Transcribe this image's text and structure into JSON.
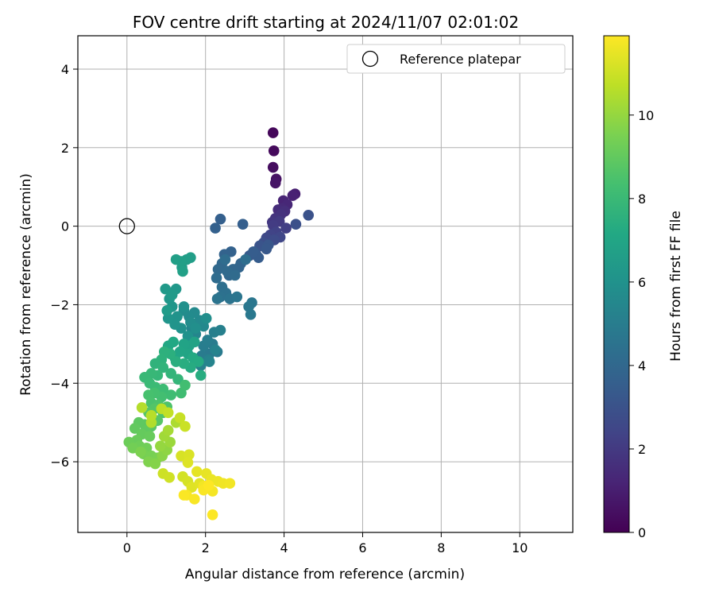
{
  "chart_data": {
    "type": "scatter",
    "title": "FOV centre drift starting at 2024/11/07 02:01:02",
    "xlabel": "Angular distance from reference (arcmin)",
    "ylabel": "Rotation from reference (arcmin)",
    "xlim": [
      -1.25,
      11.35
    ],
    "ylim": [
      -7.8,
      4.85
    ],
    "xticks": [
      0,
      2,
      4,
      6,
      8,
      10
    ],
    "yticks": [
      -6,
      -4,
      -2,
      0,
      2,
      4
    ],
    "grid": true,
    "legend": {
      "placement": "top-right",
      "entries": [
        "Reference platepar"
      ]
    },
    "reference_point": {
      "name": "Reference platepar",
      "x": 0,
      "y": 0
    },
    "colorbar": {
      "label": "Hours from first FF file",
      "min": 0,
      "max": 11.9,
      "ticks": [
        0,
        2,
        4,
        6,
        8,
        10
      ],
      "colormap": "viridis"
    },
    "points_hours_x_y": [
      [
        0.2,
        3.72,
        2.38
      ],
      [
        0.3,
        3.74,
        1.92
      ],
      [
        0.4,
        3.72,
        1.5
      ],
      [
        0.55,
        3.8,
        1.2
      ],
      [
        0.65,
        3.78,
        1.1
      ],
      [
        1.0,
        4.28,
        0.82
      ],
      [
        1.1,
        4.22,
        0.78
      ],
      [
        1.2,
        3.98,
        0.65
      ],
      [
        1.3,
        4.08,
        0.55
      ],
      [
        1.4,
        3.95,
        0.45
      ],
      [
        1.5,
        3.85,
        0.42
      ],
      [
        1.6,
        4.02,
        0.38
      ],
      [
        1.7,
        3.92,
        0.3
      ],
      [
        1.8,
        3.78,
        0.2
      ],
      [
        1.9,
        3.7,
        0.1
      ],
      [
        2.0,
        3.88,
        0.12
      ],
      [
        2.1,
        3.72,
        0.02
      ],
      [
        2.2,
        4.05,
        -0.05
      ],
      [
        2.3,
        3.8,
        -0.15
      ],
      [
        2.4,
        3.65,
        -0.22
      ],
      [
        2.5,
        3.9,
        -0.28
      ],
      [
        2.6,
        3.55,
        -0.3
      ],
      [
        2.7,
        3.75,
        -0.35
      ],
      [
        2.8,
        3.48,
        -0.42
      ],
      [
        2.9,
        4.3,
        0.05
      ],
      [
        3.0,
        4.62,
        0.28
      ],
      [
        3.1,
        3.38,
        -0.5
      ],
      [
        3.2,
        3.6,
        -0.48
      ],
      [
        3.25,
        3.55,
        -0.58
      ],
      [
        3.3,
        3.28,
        -0.7
      ],
      [
        3.4,
        3.12,
        -0.75
      ],
      [
        3.45,
        3.35,
        -0.8
      ],
      [
        3.5,
        3.22,
        -0.65
      ],
      [
        3.55,
        2.95,
        0.05
      ],
      [
        3.6,
        2.38,
        0.18
      ],
      [
        3.65,
        2.25,
        -0.05
      ],
      [
        3.7,
        2.65,
        -0.65
      ],
      [
        3.75,
        2.48,
        -0.72
      ],
      [
        3.8,
        2.9,
        -0.95
      ],
      [
        3.85,
        2.85,
        -1.05
      ],
      [
        3.9,
        2.7,
        -1.1
      ],
      [
        3.95,
        2.6,
        -1.25
      ],
      [
        4.0,
        2.42,
        -0.95
      ],
      [
        4.05,
        2.32,
        -1.1
      ],
      [
        4.1,
        2.55,
        -1.15
      ],
      [
        4.15,
        2.75,
        -1.25
      ],
      [
        4.2,
        2.28,
        -1.32
      ],
      [
        4.25,
        2.5,
        -0.85
      ],
      [
        4.3,
        3.02,
        -0.85
      ],
      [
        4.35,
        2.42,
        -1.55
      ],
      [
        4.4,
        2.52,
        -1.7
      ],
      [
        4.45,
        2.38,
        -1.8
      ],
      [
        4.5,
        2.62,
        -1.85
      ],
      [
        4.55,
        2.3,
        -1.85
      ],
      [
        4.6,
        2.8,
        -1.8
      ],
      [
        4.65,
        3.18,
        -1.95
      ],
      [
        4.7,
        3.1,
        -2.05
      ],
      [
        4.75,
        3.15,
        -2.25
      ],
      [
        4.8,
        2.1,
        -3.25
      ],
      [
        4.85,
        2.3,
        -3.2
      ],
      [
        4.9,
        1.9,
        -3.3
      ],
      [
        4.95,
        2.18,
        -3.0
      ],
      [
        5.0,
        1.95,
        -3.05
      ],
      [
        5.05,
        2.05,
        -2.9
      ],
      [
        5.1,
        2.22,
        -2.7
      ],
      [
        5.15,
        2.38,
        -2.65
      ],
      [
        5.2,
        2.08,
        -3.4
      ],
      [
        5.25,
        1.88,
        -3.55
      ],
      [
        5.3,
        2.25,
        -3.15
      ],
      [
        5.35,
        2.1,
        -3.45
      ],
      [
        5.4,
        1.75,
        -2.75
      ],
      [
        5.45,
        1.65,
        -2.6
      ],
      [
        5.5,
        1.95,
        -2.55
      ],
      [
        5.55,
        1.85,
        -2.4
      ],
      [
        5.6,
        1.72,
        -2.2
      ],
      [
        5.65,
        1.58,
        -2.3
      ],
      [
        5.7,
        1.45,
        -2.15
      ],
      [
        5.75,
        1.62,
        -2.45
      ],
      [
        5.8,
        2.02,
        -2.35
      ],
      [
        5.85,
        1.75,
        -2.6
      ],
      [
        5.9,
        1.45,
        -2.05
      ],
      [
        5.95,
        1.38,
        -2.6
      ],
      [
        6.0,
        1.55,
        -2.8
      ],
      [
        6.05,
        1.28,
        -2.3
      ],
      [
        6.1,
        1.22,
        -2.5
      ],
      [
        6.15,
        1.05,
        -2.35
      ],
      [
        6.2,
        1.15,
        -2.05
      ],
      [
        6.25,
        1.08,
        -1.85
      ],
      [
        6.3,
        1.25,
        -1.6
      ],
      [
        6.35,
        0.98,
        -1.6
      ],
      [
        6.4,
        1.15,
        -1.75
      ],
      [
        6.45,
        1.02,
        -2.15
      ],
      [
        6.5,
        1.4,
        -1.05
      ],
      [
        6.55,
        1.52,
        -0.85
      ],
      [
        6.6,
        1.62,
        -0.8
      ],
      [
        6.65,
        1.38,
        -0.9
      ],
      [
        6.7,
        1.25,
        -0.85
      ],
      [
        6.75,
        1.42,
        -1.15
      ],
      [
        6.8,
        1.58,
        -3.05
      ],
      [
        6.85,
        1.72,
        -2.95
      ],
      [
        6.9,
        1.45,
        -3.0
      ],
      [
        6.95,
        1.55,
        -3.25
      ],
      [
        7.0,
        1.35,
        -3.2
      ],
      [
        7.05,
        1.22,
        -3.35
      ],
      [
        7.1,
        1.05,
        -3.05
      ],
      [
        7.15,
        1.18,
        -2.95
      ],
      [
        7.2,
        1.68,
        -3.35
      ],
      [
        7.25,
        1.82,
        -3.45
      ],
      [
        7.3,
        1.62,
        -3.6
      ],
      [
        7.35,
        1.88,
        -3.8
      ],
      [
        7.4,
        1.45,
        -3.5
      ],
      [
        7.45,
        1.25,
        -3.45
      ],
      [
        7.5,
        1.1,
        -3.25
      ],
      [
        7.55,
        0.95,
        -3.2
      ],
      [
        7.6,
        0.88,
        -3.4
      ],
      [
        7.65,
        0.72,
        -3.5
      ],
      [
        7.7,
        0.92,
        -3.6
      ],
      [
        7.75,
        1.12,
        -3.75
      ],
      [
        7.8,
        1.3,
        -3.9
      ],
      [
        7.85,
        0.78,
        -3.8
      ],
      [
        7.9,
        0.62,
        -3.75
      ],
      [
        7.95,
        0.45,
        -3.85
      ],
      [
        8.0,
        0.58,
        -4.0
      ],
      [
        8.05,
        0.72,
        -4.1
      ],
      [
        8.1,
        0.92,
        -4.15
      ],
      [
        8.15,
        1.12,
        -4.3
      ],
      [
        8.2,
        1.38,
        -4.25
      ],
      [
        8.25,
        1.48,
        -4.05
      ],
      [
        8.3,
        0.88,
        -4.35
      ],
      [
        8.35,
        0.7,
        -4.25
      ],
      [
        8.4,
        0.55,
        -4.3
      ],
      [
        8.45,
        0.62,
        -4.5
      ],
      [
        8.5,
        0.8,
        -4.55
      ],
      [
        8.55,
        1.02,
        -4.6
      ],
      [
        8.6,
        0.92,
        -4.75
      ],
      [
        8.65,
        0.7,
        -4.65
      ],
      [
        8.7,
        0.55,
        -4.75
      ],
      [
        8.75,
        0.78,
        -4.95
      ],
      [
        8.8,
        0.62,
        -5.1
      ],
      [
        8.85,
        0.45,
        -5.05
      ],
      [
        8.9,
        0.3,
        -5.0
      ],
      [
        8.95,
        0.48,
        -5.2
      ],
      [
        9.0,
        0.2,
        -5.15
      ],
      [
        9.05,
        0.38,
        -5.3
      ],
      [
        9.1,
        0.58,
        -5.35
      ],
      [
        9.15,
        0.25,
        -5.45
      ],
      [
        9.2,
        0.05,
        -5.5
      ],
      [
        9.25,
        0.32,
        -5.6
      ],
      [
        9.3,
        0.5,
        -5.65
      ],
      [
        9.35,
        0.15,
        -5.65
      ],
      [
        9.4,
        0.42,
        -5.8
      ],
      [
        9.45,
        0.62,
        -5.85
      ],
      [
        9.5,
        0.78,
        -5.9
      ],
      [
        9.55,
        0.35,
        -5.75
      ],
      [
        9.6,
        0.55,
        -6.0
      ],
      [
        9.7,
        0.72,
        -6.05
      ],
      [
        9.8,
        0.9,
        -5.85
      ],
      [
        9.9,
        1.02,
        -5.7
      ],
      [
        10.0,
        0.85,
        -5.6
      ],
      [
        10.1,
        1.1,
        -5.5
      ],
      [
        10.2,
        0.95,
        -5.35
      ],
      [
        10.3,
        1.05,
        -5.2
      ],
      [
        10.4,
        1.25,
        -5.0
      ],
      [
        10.5,
        0.62,
        -5.0
      ],
      [
        10.55,
        0.38,
        -4.62
      ],
      [
        10.6,
        0.62,
        -4.82
      ],
      [
        10.7,
        0.88,
        -4.65
      ],
      [
        10.8,
        1.05,
        -4.75
      ],
      [
        10.9,
        1.35,
        -4.88
      ],
      [
        10.95,
        1.48,
        -5.1
      ],
      [
        11.0,
        0.92,
        -6.3
      ],
      [
        11.05,
        1.08,
        -6.4
      ],
      [
        11.1,
        1.42,
        -6.38
      ],
      [
        11.15,
        1.55,
        -6.5
      ],
      [
        11.2,
        1.38,
        -5.85
      ],
      [
        11.25,
        1.58,
        -5.82
      ],
      [
        11.3,
        1.55,
        -6.02
      ],
      [
        11.35,
        1.65,
        -6.65
      ],
      [
        11.4,
        1.85,
        -6.55
      ],
      [
        11.45,
        1.78,
        -6.25
      ],
      [
        11.5,
        2.02,
        -6.3
      ],
      [
        11.55,
        2.15,
        -6.45
      ],
      [
        11.6,
        2.32,
        -6.5
      ],
      [
        11.65,
        2.45,
        -6.55
      ],
      [
        11.7,
        2.62,
        -6.55
      ],
      [
        11.72,
        1.95,
        -6.62
      ],
      [
        11.75,
        2.18,
        -6.75
      ],
      [
        11.78,
        1.52,
        -6.85
      ],
      [
        11.8,
        1.72,
        -6.95
      ],
      [
        11.82,
        1.95,
        -6.72
      ],
      [
        11.85,
        1.45,
        -6.85
      ],
      [
        11.88,
        2.18,
        -7.35
      ],
      [
        11.9,
        2.08,
        -6.6
      ]
    ]
  }
}
